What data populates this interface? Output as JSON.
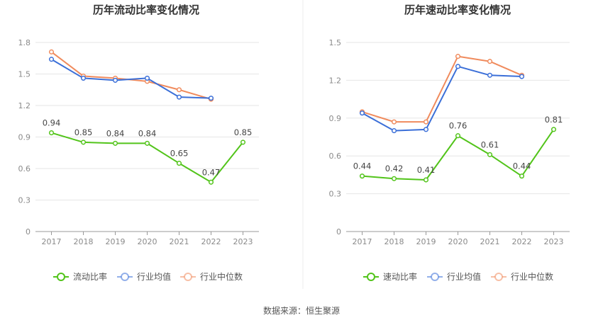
{
  "source": "数据来源：恒生聚源",
  "colors": {
    "company": "#52c41a",
    "industry_avg": "#3b6fd8",
    "industry_median": "#f08b5d",
    "grid": "#e6e6e6",
    "axis": "#999999"
  },
  "chart_data": [
    {
      "type": "line",
      "title": "历年流动比率变化情况",
      "categories": [
        "2017",
        "2018",
        "2019",
        "2020",
        "2021",
        "2022",
        "2023"
      ],
      "ylim": [
        0,
        1.8
      ],
      "yticks": [
        "0",
        "0.3",
        "0.6",
        "0.9",
        "1.2",
        "1.5",
        "1.8"
      ],
      "series": [
        {
          "name": "流动比率",
          "key": "company",
          "values": [
            0.94,
            0.85,
            0.84,
            0.84,
            0.65,
            0.47,
            0.85
          ],
          "labels": [
            "0.94",
            "0.85",
            "0.84",
            "0.84",
            "0.65",
            "0.47",
            "0.85"
          ]
        },
        {
          "name": "行业均值",
          "key": "industry_avg",
          "values": [
            1.64,
            1.46,
            1.44,
            1.46,
            1.28,
            1.27,
            null
          ]
        },
        {
          "name": "行业中位数",
          "key": "industry_median",
          "values": [
            1.71,
            1.48,
            1.46,
            1.43,
            1.35,
            1.26,
            null
          ]
        }
      ]
    },
    {
      "type": "line",
      "title": "历年速动比率变化情况",
      "categories": [
        "2017",
        "2018",
        "2019",
        "2020",
        "2021",
        "2022",
        "2023"
      ],
      "ylim": [
        0,
        1.5
      ],
      "yticks": [
        "0",
        "0.3",
        "0.6",
        "0.9",
        "1.2",
        "1.5"
      ],
      "series": [
        {
          "name": "速动比率",
          "key": "company",
          "values": [
            0.44,
            0.42,
            0.41,
            0.76,
            0.61,
            0.44,
            0.81
          ],
          "labels": [
            "0.44",
            "0.42",
            "0.41",
            "0.76",
            "0.61",
            "0.44",
            "0.81"
          ]
        },
        {
          "name": "行业均值",
          "key": "industry_avg",
          "values": [
            0.94,
            0.8,
            0.81,
            1.31,
            1.24,
            1.23,
            null
          ]
        },
        {
          "name": "行业中位数",
          "key": "industry_median",
          "values": [
            0.95,
            0.87,
            0.87,
            1.39,
            1.35,
            1.24,
            null
          ]
        }
      ]
    }
  ]
}
